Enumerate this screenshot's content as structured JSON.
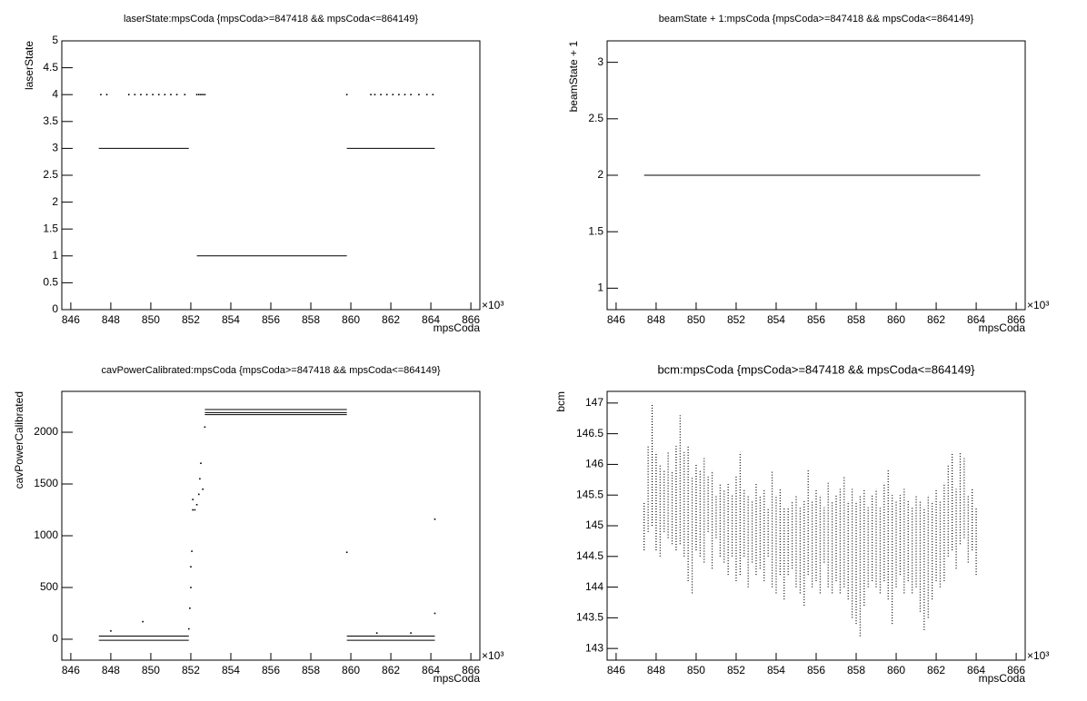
{
  "chart_data": [
    {
      "type": "scatter",
      "title": "laserState:mpsCoda {mpsCoda>=847418 && mpsCoda<=864149}",
      "xlabel": "mpsCoda",
      "ylabel": "laserState",
      "x_multiplier": "×10³",
      "xlim": [
        845.55,
        866.45
      ],
      "xticks": [
        846,
        848,
        850,
        852,
        854,
        856,
        858,
        860,
        862,
        864,
        866
      ],
      "ylim": [
        0,
        5
      ],
      "yticks": [
        0,
        0.5,
        1,
        1.5,
        2,
        2.5,
        3,
        3.5,
        4,
        4.5,
        5
      ],
      "series": [
        {
          "style": "line",
          "color": "#000000",
          "x": [
            847.4,
            851.9,
            null,
            852.3,
            859.8,
            null,
            859.8,
            864.2
          ],
          "values": [
            3,
            3,
            null,
            1,
            1,
            null,
            3,
            3
          ]
        },
        {
          "style": "points",
          "color": "#000000",
          "x": [
            847.5,
            847.8,
            848.9,
            849.2,
            849.5,
            849.8,
            850.1,
            850.4,
            850.7,
            851.0,
            851.3,
            851.7,
            852.3,
            852.4,
            852.5,
            852.6,
            852.7,
            859.8,
            861.0,
            861.2,
            861.5,
            861.8,
            862.1,
            862.4,
            862.7,
            863.0,
            863.4,
            863.8,
            864.1
          ],
          "values": [
            4,
            4,
            4,
            4,
            4,
            4,
            4,
            4,
            4,
            4,
            4,
            4,
            4,
            4,
            4,
            4,
            4,
            4,
            4,
            4,
            4,
            4,
            4,
            4,
            4,
            4,
            4,
            4,
            4
          ]
        }
      ]
    },
    {
      "type": "scatter",
      "title": "beamState + 1:mpsCoda {mpsCoda>=847418 && mpsCoda<=864149}",
      "xlabel": "mpsCoda",
      "ylabel": "beamState + 1",
      "x_multiplier": "×10³",
      "xlim": [
        845.55,
        866.45
      ],
      "xticks": [
        846,
        848,
        850,
        852,
        854,
        856,
        858,
        860,
        862,
        864,
        866
      ],
      "ylim": [
        0.81,
        3.19
      ],
      "yticks": [
        1,
        1.5,
        2,
        2.5,
        3
      ],
      "series": [
        {
          "style": "line",
          "color": "#000000",
          "x": [
            847.4,
            864.2
          ],
          "values": [
            2,
            2
          ]
        }
      ]
    },
    {
      "type": "scatter",
      "title": "cavPowerCalibrated:mpsCoda {mpsCoda>=847418 && mpsCoda<=864149}",
      "xlabel": "mpsCoda",
      "ylabel": "cavPowerCalibrated",
      "x_multiplier": "×10³",
      "xlim": [
        845.55,
        866.45
      ],
      "xticks": [
        846,
        848,
        850,
        852,
        854,
        856,
        858,
        860,
        862,
        864,
        866
      ],
      "ylim": [
        -202,
        2395
      ],
      "yticks": [
        0,
        500,
        1000,
        1500,
        2000
      ],
      "series": [
        {
          "style": "line",
          "color": "#000000",
          "x": [
            847.4,
            851.9,
            null,
            847.4,
            851.9,
            null,
            859.8,
            864.2,
            null,
            859.8,
            864.2,
            null,
            852.7,
            859.8,
            null,
            852.7,
            859.8,
            null,
            852.7,
            859.8
          ],
          "values": [
            -10,
            -10,
            null,
            30,
            30,
            null,
            -10,
            -10,
            null,
            30,
            30,
            null,
            2170,
            2170,
            null,
            2190,
            2190,
            null,
            2220,
            2220
          ]
        },
        {
          "style": "points",
          "color": "#000000",
          "x": [
            851.9,
            851.95,
            852.0,
            852.0,
            852.05,
            852.1,
            852.1,
            852.2,
            852.3,
            852.4,
            852.45,
            852.5,
            852.6,
            852.7,
            859.8,
            864.2,
            864.2,
            849.6,
            848.0,
            861.3,
            863.0
          ],
          "values": [
            100,
            300,
            500,
            700,
            850,
            1250,
            1350,
            1250,
            1300,
            1400,
            1550,
            1700,
            1450,
            2050,
            840,
            1160,
            250,
            170,
            80,
            60,
            60
          ]
        }
      ]
    },
    {
      "type": "scatter",
      "title": "bcm:mpsCoda {mpsCoda>=847418 && mpsCoda<=864149}",
      "xlabel": "mpsCoda",
      "ylabel": "bcm",
      "x_multiplier": "×10³",
      "xlim": [
        845.55,
        866.45
      ],
      "xticks": [
        846,
        848,
        850,
        852,
        854,
        856,
        858,
        860,
        862,
        864,
        866
      ],
      "ylim": [
        142.81,
        147.19
      ],
      "yticks": [
        143,
        143.5,
        144,
        144.5,
        145,
        145.5,
        146,
        146.5,
        147
      ],
      "series": [
        {
          "style": "range",
          "color": "#000000",
          "x": [
            847.4,
            847.6,
            847.8,
            848.0,
            848.2,
            848.4,
            848.6,
            848.8,
            849.0,
            849.2,
            849.4,
            849.6,
            849.8,
            850.0,
            850.2,
            850.4,
            850.6,
            850.8,
            851.0,
            851.2,
            851.4,
            851.6,
            851.8,
            852.0,
            852.2,
            852.4,
            852.6,
            852.8,
            853.0,
            853.2,
            853.4,
            853.6,
            853.8,
            854.0,
            854.2,
            854.4,
            854.6,
            854.8,
            855.0,
            855.2,
            855.4,
            855.6,
            855.8,
            856.0,
            856.2,
            856.4,
            856.6,
            856.8,
            857.0,
            857.2,
            857.4,
            857.6,
            857.8,
            858.0,
            858.2,
            858.4,
            858.6,
            858.8,
            859.0,
            859.2,
            859.4,
            859.6,
            859.8,
            860.0,
            860.2,
            860.4,
            860.6,
            860.8,
            861.0,
            861.2,
            861.4,
            861.6,
            861.8,
            862.0,
            862.2,
            862.4,
            862.6,
            862.8,
            863.0,
            863.2,
            863.4,
            863.6,
            863.8,
            864.0
          ],
          "high": [
            145.4,
            146.3,
            147.0,
            146.2,
            146.0,
            145.9,
            146.2,
            145.9,
            146.3,
            146.8,
            146.2,
            146.3,
            145.8,
            146.0,
            145.9,
            146.1,
            145.8,
            145.9,
            145.5,
            145.7,
            145.6,
            145.7,
            145.5,
            145.8,
            146.2,
            145.6,
            145.5,
            145.4,
            145.7,
            145.5,
            145.6,
            145.3,
            145.9,
            145.5,
            145.6,
            145.3,
            145.3,
            145.4,
            145.5,
            145.3,
            145.4,
            145.9,
            145.4,
            145.6,
            145.5,
            145.3,
            145.7,
            145.4,
            145.5,
            145.6,
            145.8,
            145.4,
            145.6,
            145.4,
            145.5,
            145.6,
            145.3,
            145.5,
            145.6,
            145.3,
            145.7,
            145.9,
            145.5,
            145.4,
            145.5,
            145.6,
            145.4,
            145.3,
            145.5,
            145.4,
            145.3,
            145.5,
            145.4,
            145.6,
            145.4,
            145.7,
            146.0,
            146.2,
            145.6,
            146.2,
            146.1,
            145.5,
            145.6,
            145.3
          ],
          "low": [
            144.6,
            144.9,
            145.0,
            144.6,
            144.5,
            144.9,
            144.8,
            144.7,
            144.6,
            144.7,
            144.5,
            144.1,
            143.9,
            144.6,
            144.5,
            144.4,
            144.9,
            144.3,
            144.8,
            144.5,
            144.4,
            144.2,
            144.5,
            144.1,
            144.2,
            144.5,
            144.0,
            144.4,
            144.2,
            144.3,
            144.1,
            144.5,
            144.0,
            143.9,
            144.2,
            143.8,
            144.2,
            144.3,
            144.0,
            143.9,
            143.7,
            144.2,
            144.0,
            144.1,
            143.9,
            144.4,
            144.0,
            143.9,
            144.1,
            143.9,
            144.0,
            143.8,
            143.5,
            143.4,
            143.2,
            143.7,
            144.0,
            144.1,
            144.0,
            143.9,
            144.1,
            143.8,
            143.4,
            144.0,
            144.2,
            143.9,
            144.1,
            143.9,
            144.0,
            143.6,
            143.3,
            143.5,
            143.8,
            144.1,
            144.0,
            144.1,
            144.5,
            144.6,
            144.3,
            144.7,
            144.8,
            144.4,
            144.6,
            144.2
          ]
        }
      ]
    }
  ]
}
